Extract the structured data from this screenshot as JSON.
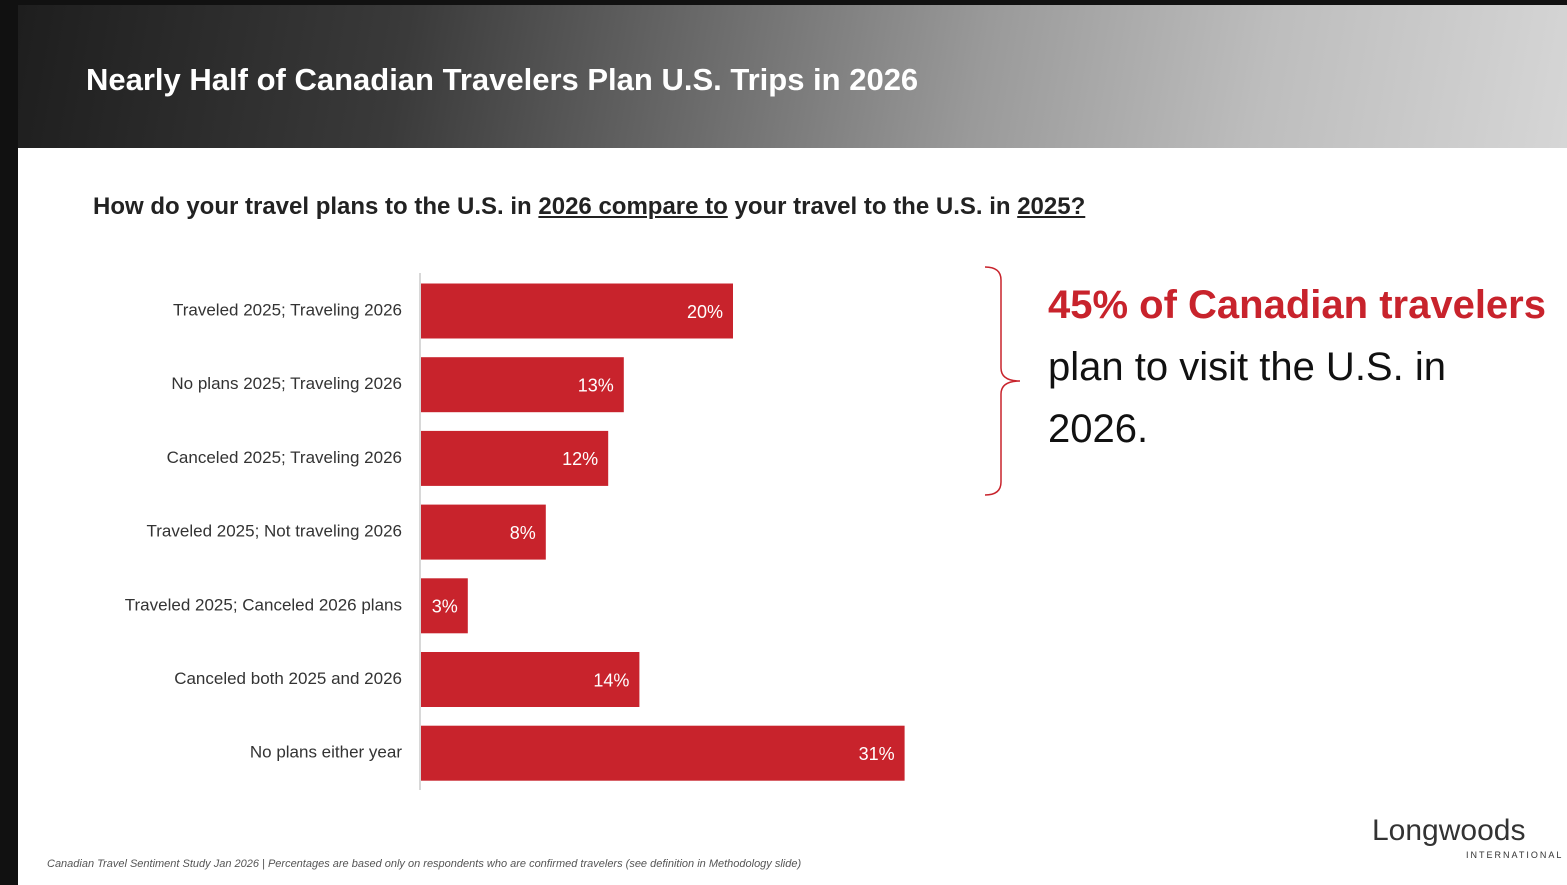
{
  "chart_data": {
    "type": "hbar",
    "title": "Nearly Half of Canadian Travelers Plan U.S. Trips in 2026",
    "subtitle": [
      "How do your travel plans to the U.S. in ",
      "2026 compare to",
      " your travel to the U.S. in ",
      "2025?"
    ],
    "categories": [
      "Traveled 2025; Traveling 2026",
      "No plans 2025; Traveling 2026",
      "Canceled 2025; Traveling 2026",
      "Traveled 2025; Not traveling 2026",
      "Traveled 2025; Canceled 2026 plans",
      "Canceled both 2025 and 2026",
      "No plans either year"
    ],
    "values": [
      20,
      13,
      12,
      8,
      3,
      14,
      31
    ],
    "value_labels": [
      "20%",
      "13%",
      "12%",
      "8%",
      "3%",
      "14%",
      "31%"
    ],
    "color": "#c8232c",
    "annotation": {
      "highlight": "45% of Canadian travelers",
      "text": "plan to visit the U.S. in 2026."
    },
    "footnote": "Canadian Travel Sentiment Study Jan 2026 | Percentages are based only on respondents who are confirmed travelers (see definition in Methodology slide)",
    "logo": {
      "name": "Longwoods",
      "sub": "INTERNATIONAL"
    }
  }
}
